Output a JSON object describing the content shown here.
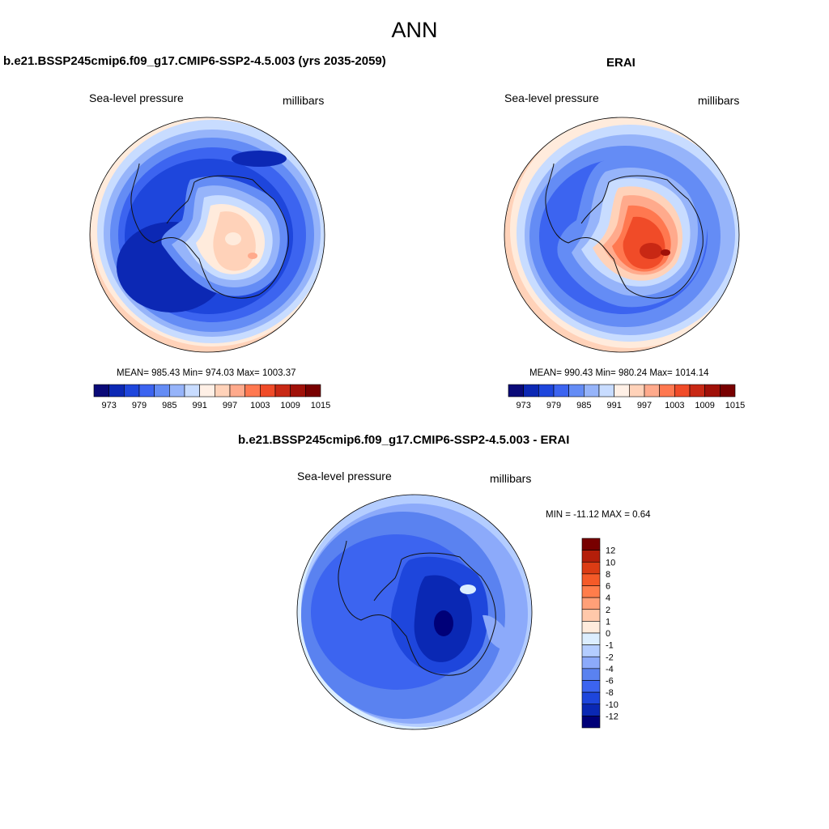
{
  "title": "ANN",
  "panels": [
    {
      "title": "b.e21.BSSP245cmip6.f09_g17.CMIP6-SSP2-4.5.003 (yrs 2035-2059)",
      "variable": "Sea-level pressure",
      "units": "millibars",
      "stats": "MEAN= 985.43  Min= 974.03  Max= 1003.37"
    },
    {
      "title": "ERAI",
      "variable": "Sea-level pressure",
      "units": "millibars",
      "stats": "MEAN= 990.43  Min= 980.24  Max= 1014.14"
    },
    {
      "title": "b.e21.BSSP245cmip6.f09_g17.CMIP6-SSP2-4.5.003 - ERAI",
      "variable": "Sea-level pressure",
      "units": "millibars",
      "stats": "MIN = -11.12 MAX =   0.64"
    }
  ],
  "colorbar_main": {
    "colors": [
      "#0a0a78",
      "#0c28b4",
      "#1e46dc",
      "#3c64f0",
      "#648cf5",
      "#96b4fa",
      "#c8dcff",
      "#fff0e6",
      "#ffd2b9",
      "#ffaa8c",
      "#ff7850",
      "#f04b28",
      "#c82814",
      "#a01008",
      "#780000"
    ],
    "labels": [
      "973",
      "979",
      "985",
      "991",
      "997",
      "1003",
      "1009",
      "1015"
    ]
  },
  "colorbar_diff": {
    "colors": [
      "#780000",
      "#b41e0a",
      "#dc3c14",
      "#f55a28",
      "#ff7d4b",
      "#ffa078",
      "#ffc8aa",
      "#ffebdc",
      "#dceeff",
      "#b4cdff",
      "#8caafa",
      "#5a82f0",
      "#3c64f0",
      "#1e46dc",
      "#0a28b4",
      "#000078"
    ],
    "labels": [
      "12",
      "10",
      "8",
      "6",
      "4",
      "2",
      "1",
      "0",
      "-1",
      "-2",
      "-4",
      "-6",
      "-8",
      "-10",
      "-12"
    ]
  }
}
